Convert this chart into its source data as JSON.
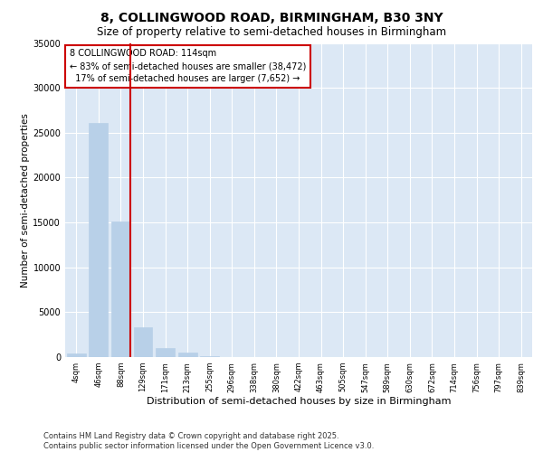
{
  "title1": "8, COLLINGWOOD ROAD, BIRMINGHAM, B30 3NY",
  "title2": "Size of property relative to semi-detached houses in Birmingham",
  "xlabel": "Distribution of semi-detached houses by size in Birmingham",
  "ylabel": "Number of semi-detached properties",
  "categories": [
    "4sqm",
    "46sqm",
    "88sqm",
    "129sqm",
    "171sqm",
    "213sqm",
    "255sqm",
    "296sqm",
    "338sqm",
    "380sqm",
    "422sqm",
    "463sqm",
    "505sqm",
    "547sqm",
    "589sqm",
    "630sqm",
    "672sqm",
    "714sqm",
    "756sqm",
    "797sqm",
    "839sqm"
  ],
  "values": [
    400,
    26100,
    15100,
    3300,
    1050,
    500,
    150,
    0,
    0,
    0,
    0,
    0,
    0,
    0,
    0,
    0,
    0,
    0,
    0,
    0,
    0
  ],
  "bar_color": "#b8d0e8",
  "vline_x": 2.45,
  "vline_color": "#cc0000",
  "annotation_text": "8 COLLINGWOOD ROAD: 114sqm\n← 83% of semi-detached houses are smaller (38,472)\n  17% of semi-detached houses are larger (7,652) →",
  "annotation_box_color": "#cc0000",
  "ylim": [
    0,
    35000
  ],
  "yticks": [
    0,
    5000,
    10000,
    15000,
    20000,
    25000,
    30000,
    35000
  ],
  "footnote": "Contains HM Land Registry data © Crown copyright and database right 2025.\nContains public sector information licensed under the Open Government Licence v3.0.",
  "bg_color": "#ffffff",
  "plot_bg_color": "#dce8f5",
  "title1_fontsize": 10,
  "title2_fontsize": 8.5,
  "annotation_fontsize": 7,
  "footnote_fontsize": 6,
  "xlabel_fontsize": 8,
  "ylabel_fontsize": 7.5,
  "tick_fontsize": 7,
  "xtick_fontsize": 6
}
